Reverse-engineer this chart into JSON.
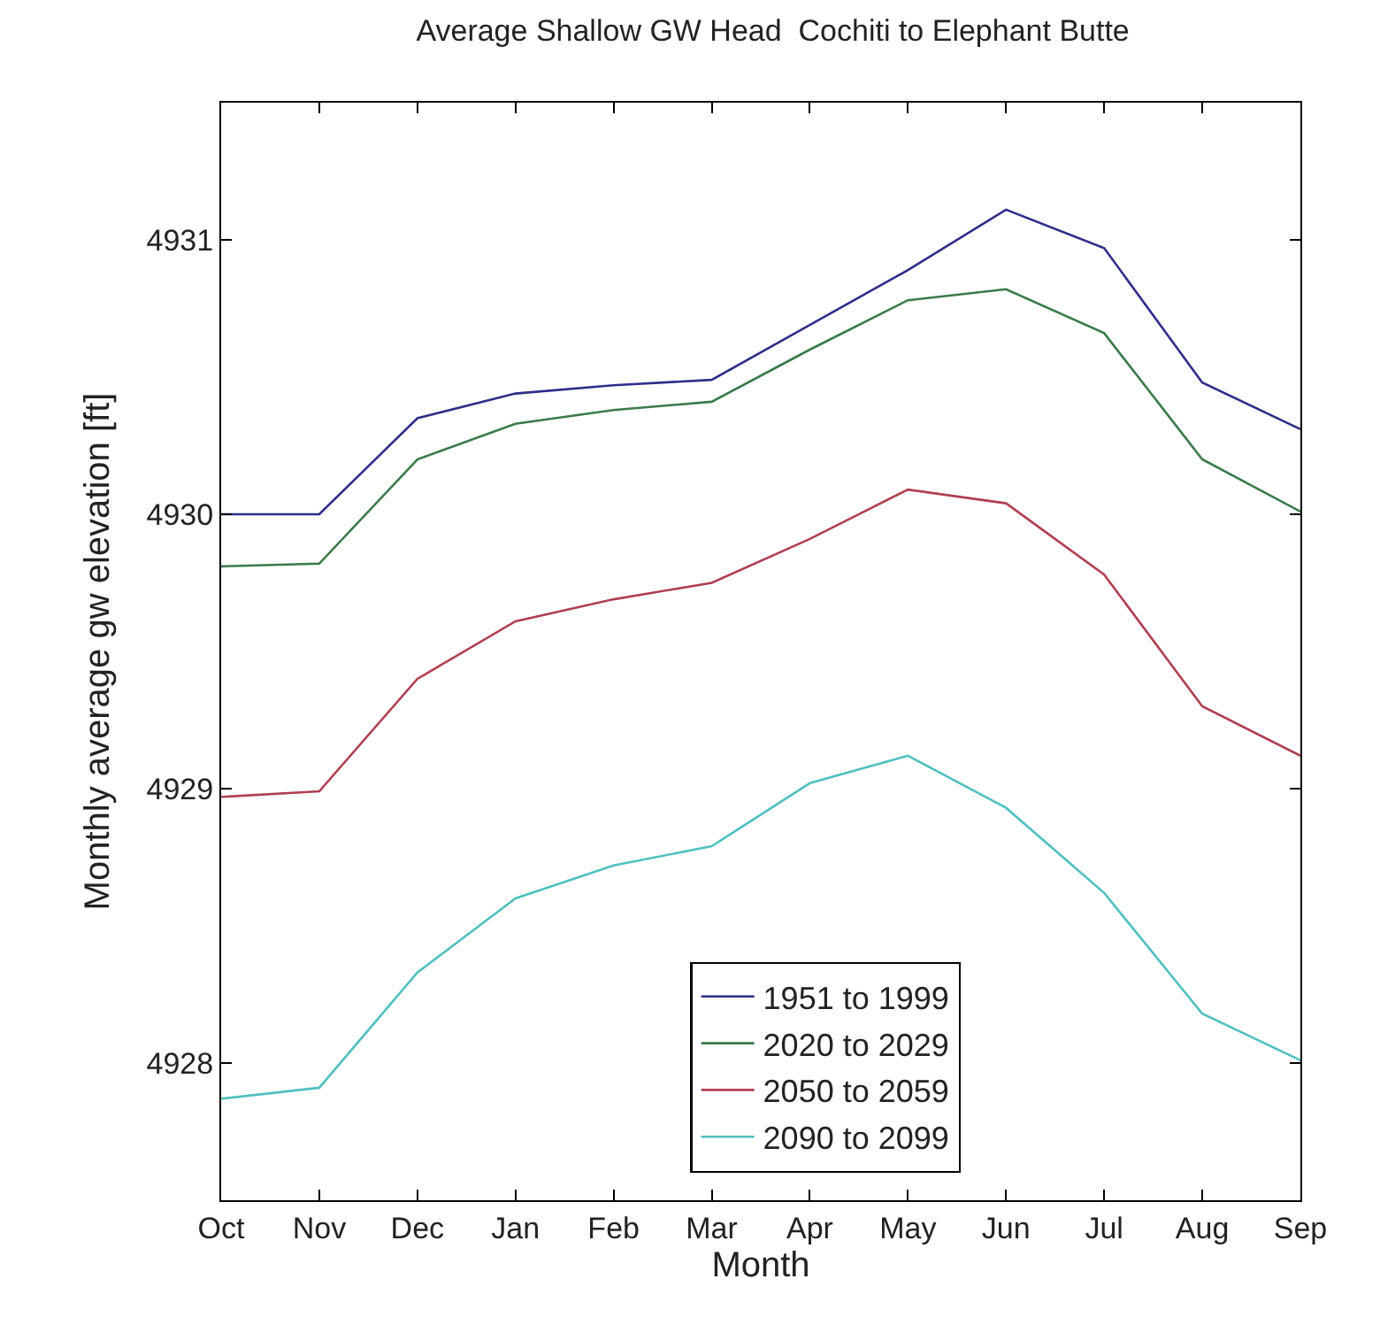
{
  "chart_data": {
    "type": "line",
    "title": "Average Shallow GW Head  Cochiti to Elephant Butte",
    "xlabel": "Month",
    "ylabel": "Monthly average gw elevation [ft]",
    "categories": [
      "Oct",
      "Nov",
      "Dec",
      "Jan",
      "Feb",
      "Mar",
      "Apr",
      "May",
      "Jun",
      "Jul",
      "Aug",
      "Sep"
    ],
    "series": [
      {
        "name": "1951 to 1999",
        "color": "#2e2e8a",
        "values": [
          4930.0,
          4930.0,
          4930.35,
          4930.44,
          4930.47,
          4930.49,
          4930.69,
          4930.89,
          4931.11,
          4930.97,
          4930.48,
          4930.31
        ]
      },
      {
        "name": "2020 to 2029",
        "color": "#3a7a4a",
        "values": [
          4929.81,
          4929.82,
          4930.2,
          4930.33,
          4930.38,
          4930.41,
          4930.6,
          4930.78,
          4930.82,
          4930.66,
          4930.2,
          4930.01
        ]
      },
      {
        "name": "2050 to 2059",
        "color": "#b04050",
        "values": [
          4928.97,
          4928.99,
          4929.4,
          4929.61,
          4929.69,
          4929.75,
          4929.91,
          4930.09,
          4930.04,
          4929.78,
          4929.3,
          4929.12
        ]
      },
      {
        "name": "2090 to 2099",
        "color": "#50c0c0",
        "values": [
          4927.87,
          4927.91,
          4928.33,
          4928.6,
          4928.72,
          4928.79,
          4929.02,
          4929.12,
          4928.93,
          4928.62,
          4928.18,
          4928.01
        ]
      }
    ],
    "ylim": [
      4927.5,
      4931.5
    ],
    "yticks": [
      4928,
      4929,
      4930,
      4931
    ],
    "legend": "bottom",
    "marker": "none",
    "line_style": "solid"
  }
}
